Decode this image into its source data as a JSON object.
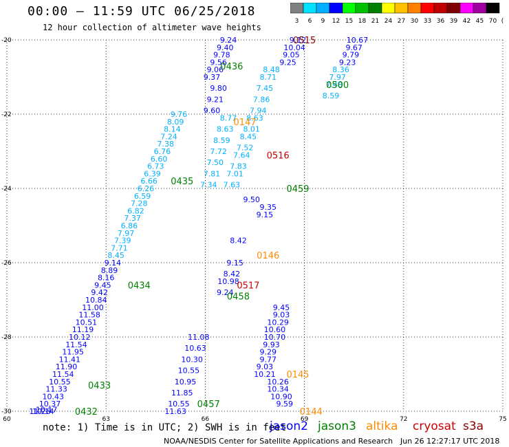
{
  "title": "00:00 – 11:59 UTC 06/25/2018",
  "subtitle": "12 hour collection of altimeter wave heights",
  "note": "note: 1) Time is in UTC; 2) SWH is in feet",
  "satellites": [
    {
      "name": "jason2",
      "color": "#0000ff"
    },
    {
      "name": "jason3",
      "color": "#008000"
    },
    {
      "name": "altika",
      "color": "#ff8c00"
    },
    {
      "name": "cryosat",
      "color": "#cc0000"
    },
    {
      "name": "s3a",
      "color": "#8b0000"
    }
  ],
  "footer": "NOAA/NESDIS Center for Satellite Applications and Research",
  "timestamp": "Jun 26 12:27:17 UTC 2018",
  "colorbar": {
    "labels": [
      "3",
      "6",
      "9",
      "12",
      "15",
      "18",
      "21",
      "24",
      "27",
      "30",
      "33",
      "36",
      "39",
      "42",
      "45",
      "70",
      "(ft)"
    ],
    "colors": [
      "#808080",
      "#00e0ff",
      "#00b0ff",
      "#0000ff",
      "#00ff00",
      "#00c000",
      "#008000",
      "#ffff00",
      "#ffc000",
      "#ff8000",
      "#ff0000",
      "#c00000",
      "#800000",
      "#ff00ff",
      "#a000a0",
      "#000000"
    ]
  },
  "chart_data": {
    "type": "scatter",
    "xlim": [
      60,
      75
    ],
    "ylim": [
      -30,
      -20
    ],
    "x_ticks": [
      "60",
      "63",
      "66",
      "69",
      "72",
      "75"
    ],
    "y_ticks": [
      "-20",
      "-22",
      "-24",
      "-26",
      "-28",
      "-30"
    ],
    "grid": true,
    "pass_labels": [
      {
        "text": "0515",
        "x": 69.0,
        "y": -20.0,
        "color": "#8b0000"
      },
      {
        "text": "0436",
        "x": 66.8,
        "y": -20.7,
        "color": "#008000"
      },
      {
        "text": "0500",
        "x": 70.0,
        "y": -21.2,
        "color": "#008000"
      },
      {
        "text": "0147",
        "x": 67.2,
        "y": -22.2,
        "color": "#ff8c00"
      },
      {
        "text": "0516",
        "x": 68.2,
        "y": -23.1,
        "color": "#cc0000"
      },
      {
        "text": "0435",
        "x": 65.3,
        "y": -23.8,
        "color": "#008000"
      },
      {
        "text": "0459",
        "x": 68.8,
        "y": -24.0,
        "color": "#008000"
      },
      {
        "text": "0146",
        "x": 67.9,
        "y": -25.8,
        "color": "#ff8c00"
      },
      {
        "text": "0434",
        "x": 64.0,
        "y": -26.6,
        "color": "#008000"
      },
      {
        "text": "0517",
        "x": 67.3,
        "y": -26.6,
        "color": "#cc0000"
      },
      {
        "text": "0458",
        "x": 67.0,
        "y": -26.9,
        "color": "#008000"
      },
      {
        "text": "0433",
        "x": 62.8,
        "y": -29.3,
        "color": "#008000"
      },
      {
        "text": "0145",
        "x": 68.8,
        "y": -29.0,
        "color": "#ff8c00"
      },
      {
        "text": "0457",
        "x": 66.1,
        "y": -29.8,
        "color": "#008000"
      },
      {
        "text": "0432",
        "x": 62.4,
        "y": -30.0,
        "color": "#008000"
      },
      {
        "text": "0144",
        "x": 69.2,
        "y": -30.0,
        "color": "#ff8c00"
      }
    ],
    "tracks": [
      {
        "color": "#00b0ff",
        "points": [
          {
            "x": 65.2,
            "y": -22.0,
            "v": "9.76"
          },
          {
            "x": 65.1,
            "y": -22.2,
            "v": "8.09"
          },
          {
            "x": 65.0,
            "y": -22.4,
            "v": "8.14"
          },
          {
            "x": 64.9,
            "y": -22.6,
            "v": "7.24"
          },
          {
            "x": 64.8,
            "y": -22.8,
            "v": "7.38"
          },
          {
            "x": 64.7,
            "y": -23.0,
            "v": "6.76"
          },
          {
            "x": 64.6,
            "y": -23.2,
            "v": "6.60"
          },
          {
            "x": 64.5,
            "y": -23.4,
            "v": "6.73"
          },
          {
            "x": 64.4,
            "y": -23.6,
            "v": "6.39"
          },
          {
            "x": 64.3,
            "y": -23.8,
            "v": "6.66"
          },
          {
            "x": 64.2,
            "y": -24.0,
            "v": "6.26"
          },
          {
            "x": 64.1,
            "y": -24.2,
            "v": "6.59"
          },
          {
            "x": 64.0,
            "y": -24.4,
            "v": "7.28"
          },
          {
            "x": 63.9,
            "y": -24.6,
            "v": "6.82"
          },
          {
            "x": 63.8,
            "y": -24.8,
            "v": "7.37"
          },
          {
            "x": 63.7,
            "y": -25.0,
            "v": "6.86"
          },
          {
            "x": 63.6,
            "y": -25.2,
            "v": "7.97"
          },
          {
            "x": 63.5,
            "y": -25.4,
            "v": "7.39"
          },
          {
            "x": 63.4,
            "y": -25.6,
            "v": "7.71"
          },
          {
            "x": 63.3,
            "y": -25.8,
            "v": "8.45"
          }
        ]
      },
      {
        "color": "#0000ff",
        "points": [
          {
            "x": 63.2,
            "y": -26.0,
            "v": "9.14"
          },
          {
            "x": 63.1,
            "y": -26.2,
            "v": "8.89"
          },
          {
            "x": 63.0,
            "y": -26.4,
            "v": "8.16"
          },
          {
            "x": 62.9,
            "y": -26.6,
            "v": "9.45"
          },
          {
            "x": 62.8,
            "y": -26.8,
            "v": "9.42"
          },
          {
            "x": 62.7,
            "y": -27.0,
            "v": "10.84"
          },
          {
            "x": 62.6,
            "y": -27.2,
            "v": "11.00"
          },
          {
            "x": 62.5,
            "y": -27.4,
            "v": "11.58"
          },
          {
            "x": 62.4,
            "y": -27.6,
            "v": "10.51"
          },
          {
            "x": 62.3,
            "y": -27.8,
            "v": "11.19"
          },
          {
            "x": 62.2,
            "y": -28.0,
            "v": "10.12"
          },
          {
            "x": 62.1,
            "y": -28.2,
            "v": "11.54"
          },
          {
            "x": 62.0,
            "y": -28.4,
            "v": "11.95"
          },
          {
            "x": 61.9,
            "y": -28.6,
            "v": "11.41"
          },
          {
            "x": 61.8,
            "y": -28.8,
            "v": "11.90"
          },
          {
            "x": 61.7,
            "y": -29.0,
            "v": "11.54"
          },
          {
            "x": 61.6,
            "y": -29.2,
            "v": "10.55"
          },
          {
            "x": 61.5,
            "y": -29.4,
            "v": "11.33"
          },
          {
            "x": 61.4,
            "y": -29.6,
            "v": "10.43"
          },
          {
            "x": 61.3,
            "y": -29.8,
            "v": "10.37"
          }
        ]
      },
      {
        "color": "#0000ff",
        "points": [
          {
            "x": 66.7,
            "y": -20.0,
            "v": "9.24"
          },
          {
            "x": 66.6,
            "y": -20.2,
            "v": "9.40"
          },
          {
            "x": 66.5,
            "y": -20.4,
            "v": "9.78"
          },
          {
            "x": 66.4,
            "y": -20.6,
            "v": "9.56"
          },
          {
            "x": 66.3,
            "y": -20.8,
            "v": "9.06"
          },
          {
            "x": 66.2,
            "y": -21.0,
            "v": "9.37"
          },
          {
            "x": 66.4,
            "y": -21.3,
            "v": "9.80"
          },
          {
            "x": 66.3,
            "y": -21.6,
            "v": "9.21"
          },
          {
            "x": 66.2,
            "y": -21.9,
            "v": "9.60"
          }
        ]
      },
      {
        "color": "#0000ff",
        "points": [
          {
            "x": 68.8,
            "y": -20.0,
            "v": "9.12"
          },
          {
            "x": 68.7,
            "y": -20.2,
            "v": "10.04"
          },
          {
            "x": 68.6,
            "y": -20.4,
            "v": "9.05"
          },
          {
            "x": 68.5,
            "y": -20.6,
            "v": "9.25"
          },
          {
            "x": 70.6,
            "y": -20.0,
            "v": "10.67"
          },
          {
            "x": 70.5,
            "y": -20.2,
            "v": "9.67"
          },
          {
            "x": 70.4,
            "y": -20.4,
            "v": "9.79"
          },
          {
            "x": 70.3,
            "y": -20.6,
            "v": "9.23"
          }
        ]
      },
      {
        "color": "#0000ff",
        "points": [
          {
            "x": 68.3,
            "y": -27.2,
            "v": "9.45"
          },
          {
            "x": 68.3,
            "y": -27.4,
            "v": "9.03"
          },
          {
            "x": 68.2,
            "y": -27.6,
            "v": "10.29"
          },
          {
            "x": 68.1,
            "y": -27.8,
            "v": "10.60"
          },
          {
            "x": 68.1,
            "y": -28.0,
            "v": "10.70"
          },
          {
            "x": 68.0,
            "y": -28.2,
            "v": "9.93"
          },
          {
            "x": 67.9,
            "y": -28.4,
            "v": "9.29"
          },
          {
            "x": 67.9,
            "y": -28.6,
            "v": "9.77"
          },
          {
            "x": 67.8,
            "y": -28.8,
            "v": "9.03"
          },
          {
            "x": 67.8,
            "y": -29.0,
            "v": "10.21"
          },
          {
            "x": 68.2,
            "y": -29.2,
            "v": "10.26"
          },
          {
            "x": 68.2,
            "y": -29.4,
            "v": "10.34"
          },
          {
            "x": 68.3,
            "y": -29.6,
            "v": "10.90"
          },
          {
            "x": 68.4,
            "y": -29.8,
            "v": "9.59"
          }
        ]
      },
      {
        "color": "#00b0ff",
        "points": [
          {
            "x": 68.0,
            "y": -20.8,
            "v": "8.48"
          },
          {
            "x": 67.9,
            "y": -21.0,
            "v": "8.71"
          },
          {
            "x": 67.8,
            "y": -21.3,
            "v": "7.45"
          },
          {
            "x": 67.7,
            "y": -21.6,
            "v": "7.86"
          },
          {
            "x": 67.6,
            "y": -21.9,
            "v": "7.94"
          },
          {
            "x": 67.5,
            "y": -22.1,
            "v": "8.63"
          },
          {
            "x": 67.4,
            "y": -22.4,
            "v": "8.01"
          },
          {
            "x": 67.3,
            "y": -22.6,
            "v": "8.45"
          },
          {
            "x": 67.2,
            "y": -22.9,
            "v": "7.52"
          },
          {
            "x": 67.1,
            "y": -23.1,
            "v": "7.64"
          },
          {
            "x": 67.0,
            "y": -23.4,
            "v": "7.83"
          },
          {
            "x": 66.9,
            "y": -23.6,
            "v": "7.01"
          },
          {
            "x": 66.8,
            "y": -23.9,
            "v": "7.63"
          }
        ]
      },
      {
        "color": "#00b0ff",
        "points": [
          {
            "x": 70.1,
            "y": -20.8,
            "v": "8.36"
          },
          {
            "x": 70.0,
            "y": -21.0,
            "v": "7.97"
          },
          {
            "x": 69.9,
            "y": -21.2,
            "v": "7.48"
          },
          {
            "x": 69.8,
            "y": -21.5,
            "v": "8.59"
          }
        ]
      },
      {
        "color": "#00b0ff",
        "points": [
          {
            "x": 66.7,
            "y": -22.1,
            "v": "8.77"
          },
          {
            "x": 66.6,
            "y": -22.4,
            "v": "8.63"
          },
          {
            "x": 66.5,
            "y": -22.7,
            "v": "8.59"
          },
          {
            "x": 66.4,
            "y": -23.0,
            "v": "7.72"
          },
          {
            "x": 66.3,
            "y": -23.3,
            "v": "7.50"
          },
          {
            "x": 66.2,
            "y": -23.6,
            "v": "7.81"
          },
          {
            "x": 66.1,
            "y": -23.9,
            "v": "7.34"
          }
        ]
      },
      {
        "color": "#0000ff",
        "points": [
          {
            "x": 67.4,
            "y": -24.3,
            "v": "9.50"
          },
          {
            "x": 67.9,
            "y": -24.5,
            "v": "9.35"
          },
          {
            "x": 67.8,
            "y": -24.7,
            "v": "9.15"
          },
          {
            "x": 67.0,
            "y": -25.4,
            "v": "8.42"
          },
          {
            "x": 66.9,
            "y": -26.0,
            "v": "9.15"
          },
          {
            "x": 66.8,
            "y": -26.3,
            "v": "8.42"
          },
          {
            "x": 66.7,
            "y": -26.5,
            "v": "10.98"
          },
          {
            "x": 66.6,
            "y": -26.8,
            "v": "9.24"
          }
        ]
      },
      {
        "color": "#0000ff",
        "points": [
          {
            "x": 65.8,
            "y": -28.0,
            "v": "11.08"
          },
          {
            "x": 65.7,
            "y": -28.3,
            "v": "10.63"
          },
          {
            "x": 65.6,
            "y": -28.6,
            "v": "10.30"
          },
          {
            "x": 65.5,
            "y": -28.9,
            "v": "10.55"
          },
          {
            "x": 65.4,
            "y": -29.2,
            "v": "10.95"
          },
          {
            "x": 65.3,
            "y": -29.5,
            "v": "11.85"
          },
          {
            "x": 65.2,
            "y": -29.8,
            "v": "10.55"
          },
          {
            "x": 65.1,
            "y": -30.0,
            "v": "11.63"
          }
        ]
      },
      {
        "color": "#0000ff",
        "points": [
          {
            "x": 61.2,
            "y": -29.95,
            "v": "10.17"
          },
          {
            "x": 61.1,
            "y": -30.0,
            "v": "10.14"
          },
          {
            "x": 61.0,
            "y": -30.0,
            "v": "11.26"
          }
        ]
      }
    ]
  }
}
